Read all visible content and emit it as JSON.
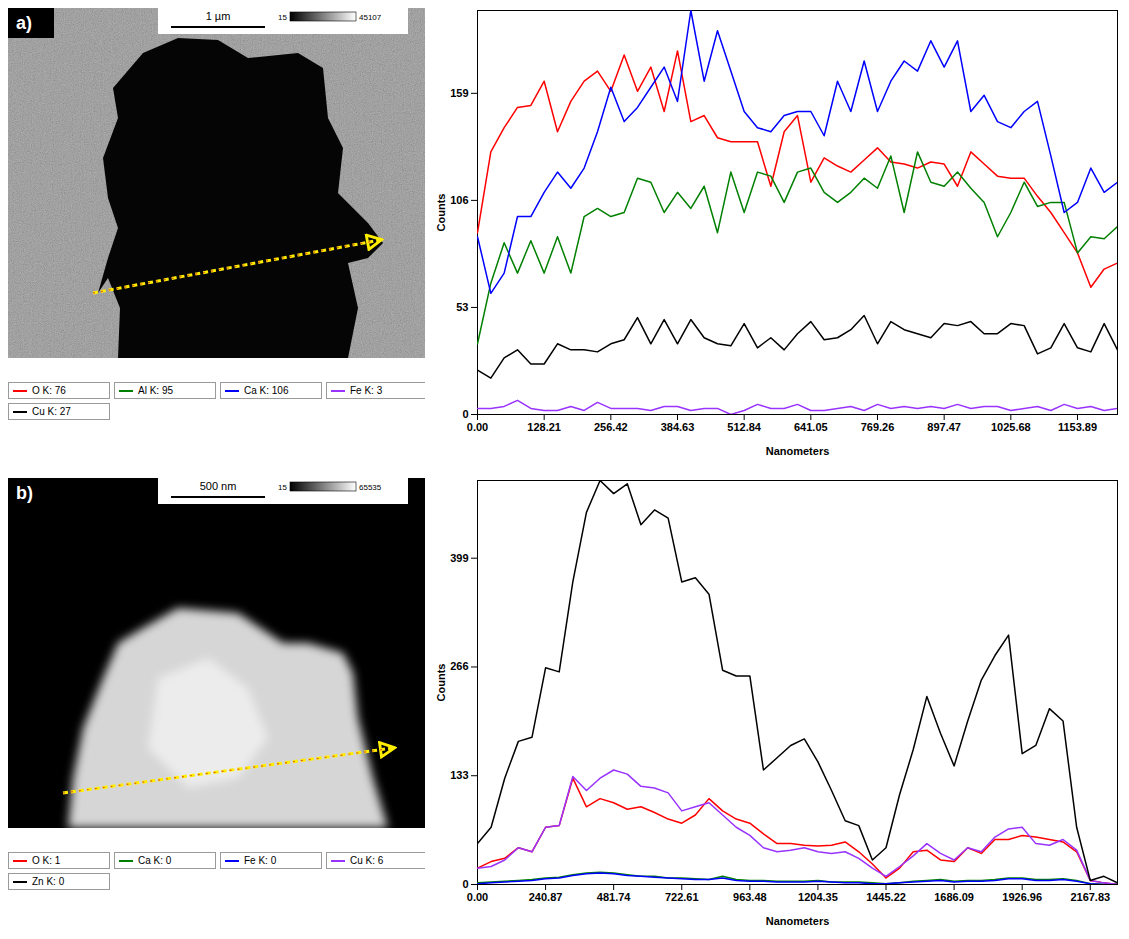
{
  "chart_data": [
    {
      "type": "line",
      "panel_label": "a)",
      "image": {
        "scale_bar": "1 µm",
        "intensity_min": 15,
        "intensity_max": 45107
      },
      "x_label": "Nanometers",
      "y_label": "Counts",
      "x": [
        0,
        25.64,
        51.28,
        76.93,
        102.57,
        128.21,
        153.85,
        179.49,
        205.14,
        230.78,
        256.42,
        282.06,
        307.7,
        333.35,
        358.99,
        384.63,
        410.27,
        435.91,
        461.56,
        487.2,
        512.84,
        538.48,
        564.12,
        589.77,
        615.41,
        641.05,
        666.69,
        692.33,
        717.98,
        743.62,
        769.26,
        794.9,
        820.54,
        846.19,
        871.83,
        897.47,
        923.11,
        948.75,
        974.4,
        1000.04,
        1025.68,
        1051.32,
        1076.96,
        1102.61,
        1128.25,
        1153.89,
        1179.53,
        1205.17,
        1230.82
      ],
      "xlim": [
        0,
        1230.82
      ],
      "xticks": [
        {
          "value": 0,
          "label": "0.00"
        },
        128.21,
        256.42,
        384.63,
        512.84,
        641.05,
        769.26,
        897.47,
        1025.68,
        1153.89
      ],
      "ylim": [
        0,
        200
      ],
      "yticks": [
        0,
        53,
        106,
        159
      ],
      "legend": "bottom",
      "series": [
        {
          "name": "O K: 76",
          "color": "#ff0000",
          "values": [
            90,
            130,
            142,
            152,
            153,
            165,
            140,
            155,
            165,
            170,
            160,
            178,
            160,
            172,
            150,
            180,
            145,
            148,
            137,
            135,
            135,
            135,
            113,
            140,
            148,
            115,
            127,
            123,
            120,
            126,
            132,
            125,
            124,
            122,
            125,
            124,
            113,
            130,
            124,
            118,
            117,
            117,
            108,
            100,
            90,
            80,
            63,
            72,
            75
          ]
        },
        {
          "name": "Al K: 95",
          "color": "#008000",
          "values": [
            35,
            65,
            85,
            70,
            86,
            70,
            88,
            70,
            98,
            102,
            98,
            100,
            117,
            115,
            100,
            110,
            102,
            113,
            90,
            120,
            100,
            120,
            118,
            105,
            120,
            122,
            110,
            105,
            110,
            117,
            112,
            128,
            100,
            130,
            115,
            113,
            120,
            112,
            105,
            88,
            100,
            115,
            103,
            105,
            105,
            80,
            88,
            87,
            93
          ]
        },
        {
          "name": "Ca K: 106",
          "color": "#0000ff",
          "values": [
            88,
            60,
            70,
            98,
            98,
            110,
            120,
            112,
            122,
            140,
            162,
            145,
            152,
            162,
            172,
            155,
            200,
            165,
            190,
            170,
            150,
            142,
            140,
            148,
            150,
            150,
            138,
            165,
            150,
            175,
            150,
            165,
            175,
            170,
            185,
            172,
            185,
            150,
            158,
            145,
            142,
            150,
            155,
            128,
            100,
            105,
            122,
            110,
            115
          ]
        },
        {
          "name": "Fe K: 3",
          "color": "#9933ff",
          "values": [
            3,
            3,
            4,
            7,
            3,
            2,
            2,
            4,
            2,
            6,
            3,
            3,
            3,
            2,
            4,
            4,
            2,
            3,
            3,
            0,
            2,
            5,
            3,
            3,
            5,
            2,
            2,
            3,
            4,
            2,
            5,
            3,
            4,
            3,
            4,
            3,
            5,
            3,
            4,
            4,
            2,
            3,
            4,
            2,
            5,
            3,
            4,
            2,
            3
          ]
        },
        {
          "name": "Cu K: 27",
          "color": "#000000",
          "values": [
            22,
            18,
            28,
            32,
            25,
            25,
            35,
            32,
            32,
            31,
            35,
            37,
            48,
            35,
            47,
            35,
            47,
            38,
            35,
            34,
            45,
            33,
            38,
            32,
            40,
            46,
            37,
            38,
            42,
            49,
            35,
            46,
            42,
            40,
            38,
            45,
            44,
            46,
            40,
            40,
            45,
            44,
            30,
            33,
            45,
            33,
            31,
            45,
            32
          ]
        }
      ]
    },
    {
      "type": "line",
      "panel_label": "b)",
      "image": {
        "scale_bar": "500 nm",
        "intensity_min": 15,
        "intensity_max": 65535
      },
      "x_label": "Nanometers",
      "y_label": "Counts",
      "x": [
        0,
        48.17,
        96.35,
        144.52,
        192.7,
        240.87,
        289.04,
        337.22,
        385.39,
        433.57,
        481.74,
        529.91,
        578.09,
        626.26,
        674.44,
        722.61,
        770.78,
        818.96,
        867.13,
        915.31,
        963.48,
        1011.65,
        1059.83,
        1108,
        1156.18,
        1204.35,
        1252.52,
        1300.7,
        1348.87,
        1397.05,
        1445.22,
        1493.39,
        1541.57,
        1589.74,
        1637.92,
        1686.09,
        1734.26,
        1782.44,
        1830.61,
        1878.79,
        1926.96,
        1975.13,
        2023.31,
        2071.48,
        2119.66,
        2167.83,
        2216,
        2264.18
      ],
      "xlim": [
        0,
        2264.18
      ],
      "xticks": [
        {
          "value": 0,
          "label": "0.00"
        },
        240.87,
        481.74,
        722.61,
        963.48,
        1204.35,
        1445.22,
        1686.09,
        1926.96,
        2167.83
      ],
      "ylim": [
        0,
        494
      ],
      "yticks": [
        0,
        133,
        266,
        399
      ],
      "legend": "bottom",
      "series": [
        {
          "name": "O K: 1",
          "color": "#ff0000",
          "values": [
            20,
            28,
            32,
            45,
            40,
            70,
            72,
            130,
            95,
            105,
            100,
            92,
            95,
            88,
            80,
            75,
            85,
            105,
            90,
            80,
            75,
            62,
            50,
            50,
            48,
            47,
            48,
            52,
            40,
            25,
            8,
            20,
            40,
            42,
            30,
            28,
            45,
            38,
            55,
            55,
            60,
            58,
            55,
            52,
            40,
            5,
            2,
            0
          ]
        },
        {
          "name": "Ca K: 0",
          "color": "#008000",
          "values": [
            2,
            3,
            4,
            5,
            6,
            8,
            9,
            12,
            14,
            15,
            14,
            12,
            10,
            10,
            8,
            8,
            7,
            6,
            10,
            6,
            5,
            5,
            4,
            4,
            4,
            5,
            3,
            3,
            3,
            2,
            1,
            2,
            4,
            5,
            6,
            4,
            5,
            5,
            6,
            8,
            8,
            6,
            6,
            7,
            5,
            1,
            0,
            0
          ]
        },
        {
          "name": "Fe K: 0",
          "color": "#0000ff",
          "values": [
            1,
            2,
            3,
            4,
            5,
            7,
            8,
            11,
            13,
            14,
            13,
            11,
            10,
            9,
            8,
            7,
            6,
            6,
            8,
            5,
            4,
            4,
            3,
            3,
            3,
            4,
            3,
            2,
            2,
            1,
            1,
            2,
            3,
            4,
            5,
            3,
            4,
            4,
            5,
            7,
            7,
            5,
            5,
            6,
            4,
            1,
            0,
            0
          ]
        },
        {
          "name": "Cu K: 6",
          "color": "#9933ff",
          "values": [
            20,
            22,
            30,
            45,
            40,
            70,
            72,
            132,
            115,
            130,
            140,
            135,
            120,
            118,
            112,
            90,
            95,
            100,
            85,
            70,
            60,
            45,
            40,
            42,
            45,
            40,
            38,
            40,
            32,
            20,
            10,
            22,
            35,
            50,
            38,
            30,
            45,
            40,
            58,
            68,
            70,
            50,
            48,
            55,
            42,
            5,
            2,
            0
          ]
        },
        {
          "name": "Zn K: 0",
          "color": "#000000",
          "values": [
            50,
            70,
            130,
            175,
            180,
            265,
            260,
            370,
            455,
            494,
            478,
            490,
            440,
            458,
            448,
            370,
            375,
            355,
            262,
            255,
            255,
            140,
            155,
            170,
            178,
            150,
            115,
            78,
            72,
            30,
            45,
            110,
            165,
            230,
            185,
            145,
            200,
            250,
            280,
            305,
            160,
            170,
            215,
            200,
            70,
            5,
            10,
            2
          ]
        }
      ]
    }
  ]
}
